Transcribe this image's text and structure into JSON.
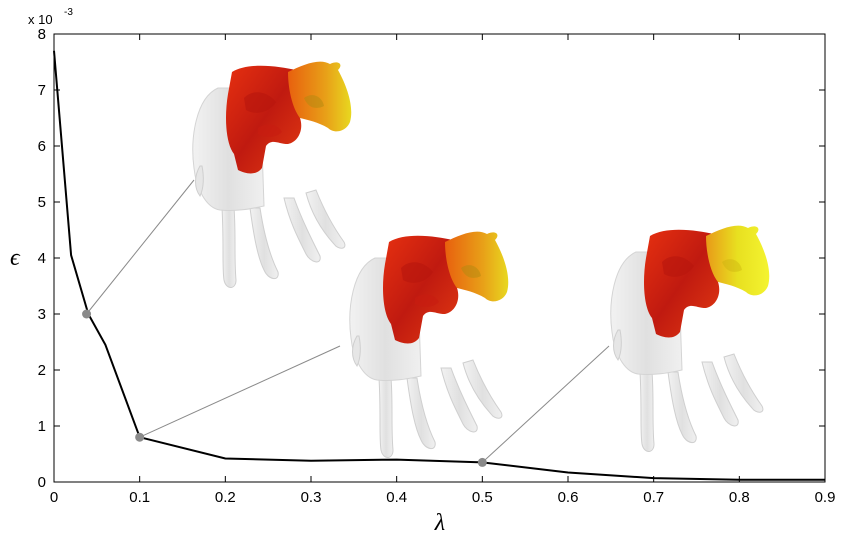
{
  "chart_data": {
    "type": "line",
    "xlabel": "λ",
    "ylabel": "ϵ",
    "y_exponent": "x 10",
    "y_exponent_power": "-3",
    "xlim": [
      0,
      0.9
    ],
    "ylim": [
      0,
      8
    ],
    "x_ticks": [
      "0",
      "0.1",
      "0.2",
      "0.3",
      "0.4",
      "0.5",
      "0.6",
      "0.7",
      "0.8",
      "0.9"
    ],
    "y_ticks": [
      "0",
      "1",
      "2",
      "3",
      "4",
      "5",
      "6",
      "7",
      "8"
    ],
    "grid": false,
    "series": [
      {
        "color": "#000000",
        "x": [
          0,
          0.02,
          0.04,
          0.06,
          0.1,
          0.2,
          0.3,
          0.4,
          0.5,
          0.6,
          0.7,
          0.8,
          0.9
        ],
        "y": [
          7.7,
          4.05,
          3.0,
          2.45,
          0.8,
          0.42,
          0.38,
          0.4,
          0.35,
          0.17,
          0.07,
          0.04,
          0.04
        ]
      }
    ],
    "highlighted_points": [
      {
        "x": 0.038,
        "y": 3.0
      },
      {
        "x": 0.1,
        "y": 0.8
      },
      {
        "x": 0.5,
        "y": 0.35
      }
    ],
    "marker_color": "#8a8a8a",
    "insets": [
      {
        "icon": "horse-mesh-heatmap",
        "linked_point": 0
      },
      {
        "icon": "horse-mesh-heatmap",
        "linked_point": 1
      },
      {
        "icon": "horse-mesh-heatmap",
        "linked_point": 2
      }
    ],
    "colors": {
      "hot": "#e01818",
      "mid": "#e85a0e",
      "warm": "#f0a010",
      "yellow": "#eeee22",
      "mesh": "#e4e4e4"
    }
  }
}
